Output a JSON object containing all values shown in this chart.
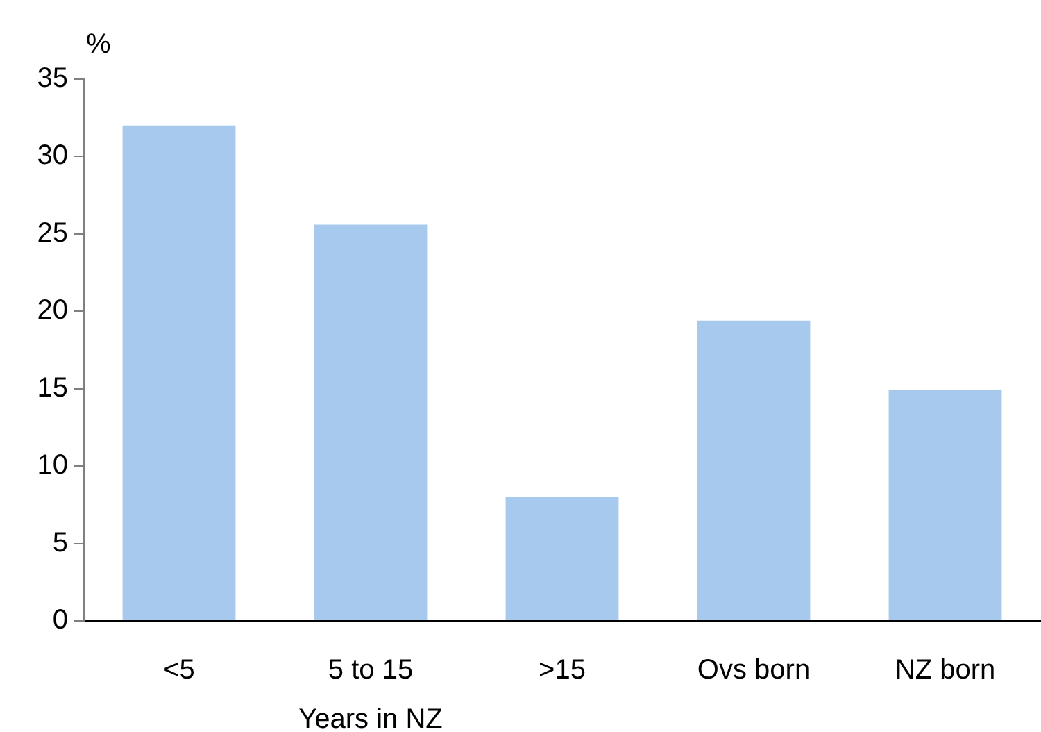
{
  "chart_data": {
    "type": "bar",
    "xlabel": "Years in NZ",
    "ylabel": "%",
    "categories": [
      "<5",
      "5 to 15",
      ">15",
      "Ovs born",
      "NZ born"
    ],
    "values": [
      32,
      25.6,
      8,
      19.4,
      14.9
    ],
    "color": "#a7c9ee",
    "ylim": [
      0,
      35
    ],
    "yticks": [
      0,
      5,
      10,
      15,
      20,
      25,
      30,
      35
    ],
    "grid": false,
    "legend": false
  }
}
